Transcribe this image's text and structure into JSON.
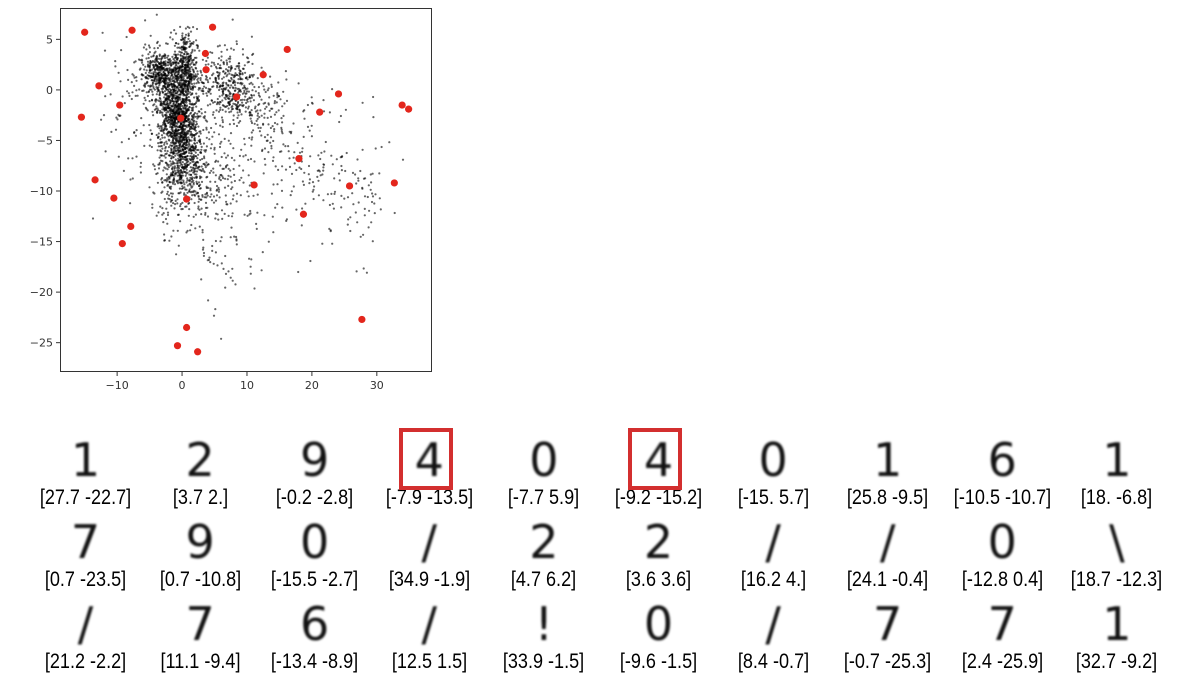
{
  "chart_data": [
    {
      "type": "scatter",
      "xlim": [
        -18.8,
        38.5
      ],
      "ylim": [
        -27.9,
        8.1
      ],
      "xticks": [
        -10,
        0,
        10,
        20,
        30
      ],
      "yticks": [
        5,
        0,
        -5,
        -10,
        -15,
        -20,
        -25
      ],
      "grid": false,
      "colors": {
        "background_points": "#000000",
        "highlight_points": "#e3261c"
      },
      "highlight_points": [
        [
          27.7,
          -22.7
        ],
        [
          3.7,
          2.0
        ],
        [
          -0.2,
          -2.8
        ],
        [
          -7.9,
          -13.5
        ],
        [
          -7.7,
          5.9
        ],
        [
          -9.2,
          -15.2
        ],
        [
          -15.0,
          5.7
        ],
        [
          25.8,
          -9.5
        ],
        [
          -10.5,
          -10.7
        ],
        [
          18.0,
          -6.8
        ],
        [
          0.7,
          -23.5
        ],
        [
          0.7,
          -10.8
        ],
        [
          -15.5,
          -2.7
        ],
        [
          34.9,
          -1.9
        ],
        [
          4.7,
          6.2
        ],
        [
          3.6,
          3.6
        ],
        [
          16.2,
          4.0
        ],
        [
          24.1,
          -0.4
        ],
        [
          -12.8,
          0.4
        ],
        [
          18.7,
          -12.3
        ],
        [
          21.2,
          -2.2
        ],
        [
          11.1,
          -9.4
        ],
        [
          -13.4,
          -8.9
        ],
        [
          12.5,
          1.5
        ],
        [
          33.9,
          -1.5
        ],
        [
          -9.6,
          -1.5
        ],
        [
          8.4,
          -0.7
        ],
        [
          -0.7,
          -25.3
        ],
        [
          2.4,
          -25.9
        ],
        [
          32.7,
          -9.2
        ]
      ]
    },
    {
      "type": "table",
      "highlight_color": "#d32f2f",
      "samples": [
        {
          "digit": "1",
          "label": "[27.7 -22.7]",
          "highlighted": false
        },
        {
          "digit": "2",
          "label": "[3.7 2.]",
          "highlighted": false
        },
        {
          "digit": "9",
          "label": "[-0.2 -2.8]",
          "highlighted": false
        },
        {
          "digit": "4",
          "label": "[-7.9 -13.5]",
          "highlighted": true
        },
        {
          "digit": "0",
          "label": "[-7.7 5.9]",
          "highlighted": false
        },
        {
          "digit": "4",
          "label": "[-9.2 -15.2]",
          "highlighted": true
        },
        {
          "digit": "0",
          "label": "[-15. 5.7]",
          "highlighted": false
        },
        {
          "digit": "1",
          "label": "[25.8 -9.5]",
          "highlighted": false
        },
        {
          "digit": "6",
          "label": "[-10.5 -10.7]",
          "highlighted": false
        },
        {
          "digit": "1",
          "label": "[18. -6.8]",
          "highlighted": false
        },
        {
          "digit": "7",
          "label": "[0.7 -23.5]",
          "highlighted": false
        },
        {
          "digit": "9",
          "label": "[0.7 -10.8]",
          "highlighted": false
        },
        {
          "digit": "0",
          "label": "[-15.5 -2.7]",
          "highlighted": false
        },
        {
          "digit": "/",
          "label": "[34.9 -1.9]",
          "highlighted": false
        },
        {
          "digit": "2",
          "label": "[4.7 6.2]",
          "highlighted": false
        },
        {
          "digit": "2",
          "label": "[3.6 3.6]",
          "highlighted": false
        },
        {
          "digit": "/",
          "label": "[16.2 4.]",
          "highlighted": false
        },
        {
          "digit": "/",
          "label": "[24.1 -0.4]",
          "highlighted": false
        },
        {
          "digit": "0",
          "label": "[-12.8 0.4]",
          "highlighted": false
        },
        {
          "digit": "\\",
          "label": "[18.7 -12.3]",
          "highlighted": false
        },
        {
          "digit": "/",
          "label": "[21.2 -2.2]",
          "highlighted": false
        },
        {
          "digit": "7",
          "label": "[11.1 -9.4]",
          "highlighted": false
        },
        {
          "digit": "6",
          "label": "[-13.4 -8.9]",
          "highlighted": false
        },
        {
          "digit": "/",
          "label": "[12.5 1.5]",
          "highlighted": false
        },
        {
          "digit": "!",
          "label": "[33.9 -1.5]",
          "highlighted": false
        },
        {
          "digit": "0",
          "label": "[-9.6 -1.5]",
          "highlighted": false
        },
        {
          "digit": "/",
          "label": "[8.4 -0.7]",
          "highlighted": false
        },
        {
          "digit": "7",
          "label": "[-0.7 -25.3]",
          "highlighted": false
        },
        {
          "digit": "7",
          "label": "[2.4 -25.9]",
          "highlighted": false
        },
        {
          "digit": "1",
          "label": "[32.7 -9.2]",
          "highlighted": false
        }
      ]
    }
  ]
}
